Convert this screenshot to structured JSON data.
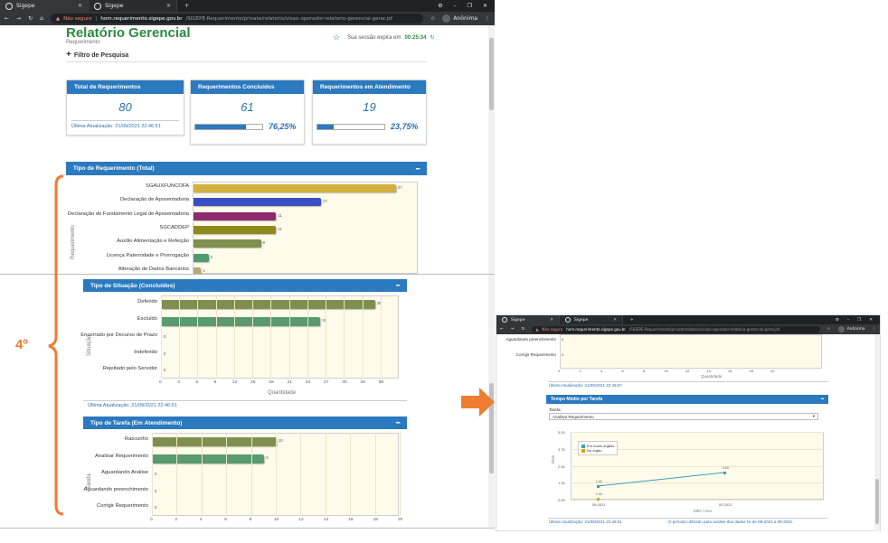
{
  "browser": {
    "tabs": [
      {
        "label": "Sigepe",
        "active": true
      },
      {
        "label": "Sigepe",
        "active": false
      }
    ],
    "new_tab": "+",
    "not_secure": "Não seguro",
    "url_host": "hom.requerimento.sigepe.gov.br",
    "url_path": "/SIGEPE-Requerimento/private/relatorio/visao-operador-relatorio-gerencial-gerar.jsf",
    "profile_label": "Anônima"
  },
  "header": {
    "title": "Relatório Gerencial",
    "subtitle": "Requerimento",
    "filter": "Filtro de Pesquisa",
    "session_prefix": "Sua sessão expira em",
    "session_time": "00:25:34"
  },
  "cards": {
    "total": {
      "title": "Total de Requerimentos",
      "value": "80",
      "update": "Última Atualização: 21/09/2021 22:46:51"
    },
    "concluidos": {
      "title": "Requerimentos Concluídos",
      "value": "61",
      "progress": 76.25,
      "pct": "76,25%"
    },
    "atendimento": {
      "title": "Requerimentos em Atendimento",
      "value": "19",
      "progress": 23.75,
      "pct": "23,75%"
    }
  },
  "panels": {
    "tipo_requerimento": {
      "title": "Tipo de Requerimento (Total)",
      "axis_label": "Requerimento",
      "bars": [
        {
          "label": "SGAUXFUNCOFA",
          "value": 27,
          "color": "#d4b13f"
        },
        {
          "label": "Declaração de Aposentadoria",
          "value": 17,
          "color": "#3a4fc4"
        },
        {
          "label": "Declaração de Fundamento Legal de Aposentadoria",
          "value": 11,
          "color": "#8e2a6e"
        },
        {
          "label": "SGCADDEP",
          "value": 11,
          "color": "#8d8a1b"
        },
        {
          "label": "Auxílio Alimentação e Refeição",
          "value": 9,
          "color": "#7f8f4f"
        },
        {
          "label": "Licença Paternidade e Prorrogação",
          "value": 2,
          "color": "#4e9a73"
        },
        {
          "label": "Alteração de Dados Bancários",
          "value": 1,
          "color": "#b6a977"
        }
      ]
    },
    "tipo_situacao": {
      "title": "Tipo de Situação (Concluídos)",
      "axis_label": "Situação",
      "xlabel": "Quantidade",
      "ticks": [
        "0",
        "3",
        "6",
        "9",
        "12",
        "15",
        "18",
        "21",
        "24",
        "27",
        "30",
        "33",
        "36"
      ],
      "bars": [
        {
          "label": "Deferido",
          "value": 35,
          "color": "#7f8f4f"
        },
        {
          "label": "Excluído",
          "value": 26,
          "color": "#5a9a6e"
        },
        {
          "label": "Encerrado por Decurso de Prazo",
          "value": 0,
          "color": "#7f8f4f"
        },
        {
          "label": "Indeferido",
          "value": 0,
          "color": "#7f8f4f"
        },
        {
          "label": "Rejeitado pelo Servidor",
          "value": 0,
          "color": "#7f8f4f"
        }
      ],
      "update": "Última Atualização: 21/09/2021 22:46:51"
    },
    "tipo_tarefa": {
      "title": "Tipo de Tarefa (Em Atendimento)",
      "axis_label": "Tarefa",
      "ticks": [
        "0",
        "2",
        "4",
        "6",
        "8",
        "10",
        "12",
        "14",
        "16",
        "18",
        "20"
      ],
      "bars": [
        {
          "label": "Rascunho",
          "value": 10,
          "color": "#7f8f4f"
        },
        {
          "label": "Analisar Requerimento",
          "value": 9,
          "color": "#5a9a6e"
        },
        {
          "label": "Aguardando Análise",
          "value": 0,
          "color": "#7f8f4f"
        },
        {
          "label": "Aguardando preenchimento",
          "value": 0,
          "color": "#7f8f4f"
        },
        {
          "label": "Corrigir Requerimento",
          "value": 0,
          "color": "#7f8f4f"
        }
      ]
    }
  },
  "annotation": {
    "label": "4º",
    "color": "#ed7d31"
  },
  "right": {
    "tarefa_rows": [
      {
        "label": "Aguardando preenchimento",
        "value": "0"
      },
      {
        "label": "Corrigir Requerimento",
        "value": "0"
      }
    ],
    "ticks": [
      "0",
      "2",
      "4",
      "6",
      "8",
      "10",
      "12",
      "14",
      "16",
      "18",
      "20"
    ],
    "xlabel": "Quantidade",
    "update": "Última Atualização: 21/09/2021 22:46:57",
    "tempo": {
      "title": "Tempo Médio por Tarefa",
      "field_label": "Tarefa:",
      "select_value": "Analisar Requerimento",
      "ylabel": "Dias",
      "xlabel": "Mês / Ano",
      "legend": [
        "Em todos órgãos",
        "No órgão"
      ],
      "yticks": [
        "5.00",
        "3.75",
        "2.50",
        "1.25",
        "0.00"
      ],
      "xticks": [
        "08-2021",
        "09-2021"
      ],
      "series_all": [
        {
          "x": "08-2021",
          "y": 1.0
        },
        {
          "x": "09-2021",
          "y": 2.0
        }
      ],
      "point_labels": [
        "1.00",
        "4.00",
        "1.00"
      ],
      "update": "Última Atualização: 21/09/2021 22:46:51",
      "period_note": "O período utilizado para análise dos dados foi de 08-2021 a 09-2021."
    }
  }
}
